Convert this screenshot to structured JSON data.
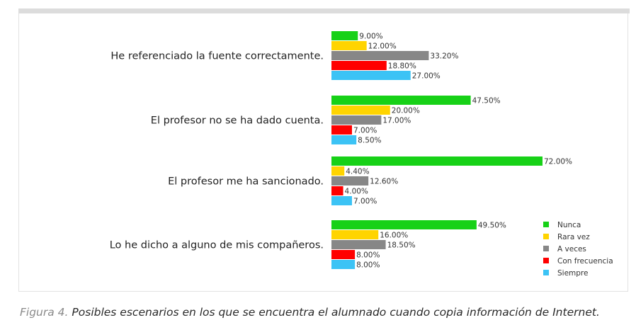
{
  "caption": {
    "figure_label": "Figura 4.",
    "text": " Posibles escenarios en los que se encuentra el alumnado cuando copia información de Internet."
  },
  "chart_data": {
    "type": "bar",
    "orientation": "horizontal",
    "categories": [
      "He referenciado la fuente correctamente.",
      "El profesor no se ha dado cuenta.",
      "El profesor me ha sancionado.",
      "Lo he dicho a alguno de mis compañeros."
    ],
    "series": [
      {
        "name": "Nunca",
        "color": "#17d117",
        "values": [
          9.0,
          47.5,
          72.0,
          49.5
        ]
      },
      {
        "name": "Rara vez",
        "color": "#ffd400",
        "values": [
          12.0,
          20.0,
          4.4,
          16.0
        ]
      },
      {
        "name": "A veces",
        "color": "#878787",
        "values": [
          33.2,
          17.0,
          12.6,
          18.5
        ]
      },
      {
        "name": "Con frecuencia",
        "color": "#ff0000",
        "values": [
          18.8,
          7.0,
          4.0,
          8.0
        ]
      },
      {
        "name": "Siempre",
        "color": "#3cc3f5",
        "values": [
          27.0,
          8.5,
          7.0,
          8.0
        ]
      }
    ],
    "value_labels": [
      [
        "9.00%",
        "12.00%",
        "33.20%",
        "18.80%",
        "27.00%"
      ],
      [
        "47.50%",
        "20.00%",
        "17.00%",
        "7.00%",
        "8.50%"
      ],
      [
        "72.00%",
        "4.40%",
        "12.60%",
        "4.00%",
        "7.00%"
      ],
      [
        "49.50%",
        "16.00%",
        "18.50%",
        "8.00%",
        "8.00%"
      ]
    ],
    "title": "",
    "xlabel": "",
    "ylabel": "",
    "xlim": [
      0,
      72
    ],
    "grid": false,
    "legend": "bottom-right"
  }
}
